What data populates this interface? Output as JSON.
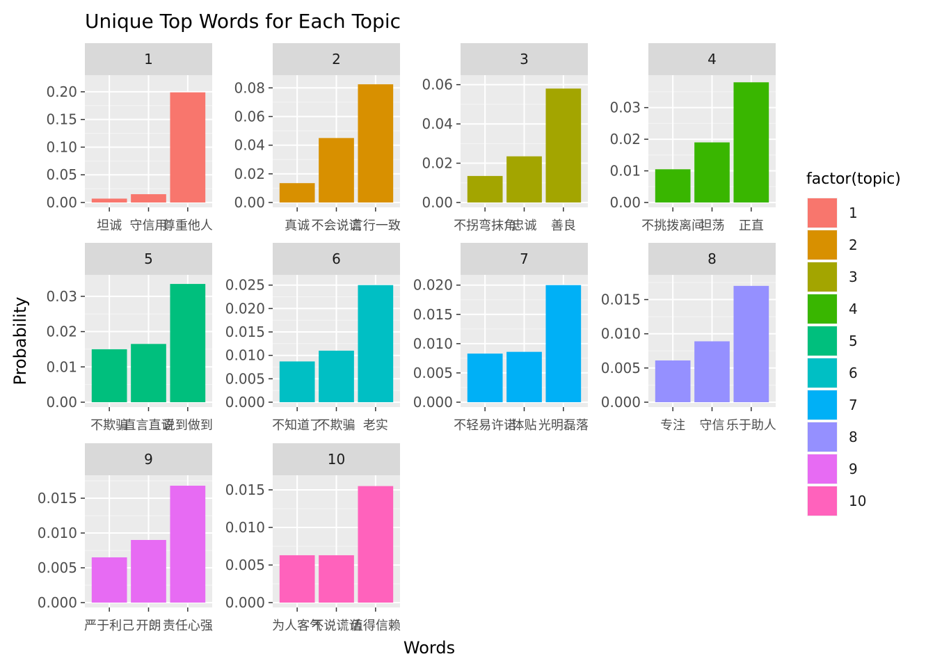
{
  "chart_data": {
    "type": "bar",
    "title": "Unique Top Words for Each Topic",
    "xlabel": "Words",
    "ylabel": "Probability",
    "grid": true,
    "legend": {
      "title": "factor(topic)",
      "position": "right",
      "entries": [
        "1",
        "2",
        "3",
        "4",
        "5",
        "6",
        "7",
        "8",
        "9",
        "10"
      ]
    },
    "facets": [
      {
        "label": "1",
        "color": "#F8766D",
        "ylim": [
          0,
          0.22
        ],
        "ticks": [
          0.0,
          0.05,
          0.1,
          0.15,
          0.2
        ],
        "tick_labels": [
          "0.00",
          "0.05",
          "0.10",
          "0.15",
          "0.20"
        ],
        "categories": [
          "坦诚",
          "守信用",
          "尊重他人"
        ],
        "values": [
          0.007,
          0.015,
          0.199
        ]
      },
      {
        "label": "2",
        "color": "#D89000",
        "ylim": [
          0,
          0.085
        ],
        "ticks": [
          0.0,
          0.02,
          0.04,
          0.06,
          0.08
        ],
        "tick_labels": [
          "0.00",
          "0.02",
          "0.04",
          "0.06",
          "0.08"
        ],
        "categories": [
          "真诚",
          "不会说谎",
          "言行一致"
        ],
        "values": [
          0.0135,
          0.045,
          0.0825
        ]
      },
      {
        "label": "3",
        "color": "#A3A500",
        "ylim": [
          0,
          0.062
        ],
        "ticks": [
          0.0,
          0.02,
          0.04,
          0.06
        ],
        "tick_labels": [
          "0.00",
          "0.02",
          "0.04",
          "0.06"
        ],
        "categories": [
          "不拐弯抹角",
          "忠诚",
          "善良"
        ],
        "values": [
          0.0135,
          0.0235,
          0.058
        ]
      },
      {
        "label": "4",
        "color": "#39B600",
        "ylim": [
          0,
          0.0385
        ],
        "ticks": [
          0.0,
          0.01,
          0.02,
          0.03
        ],
        "tick_labels": [
          "0.00",
          "0.01",
          "0.02",
          "0.03"
        ],
        "categories": [
          "不挑拨离间",
          "坦荡",
          "正直"
        ],
        "values": [
          0.0105,
          0.019,
          0.038
        ]
      },
      {
        "label": "5",
        "color": "#00BF7D",
        "ylim": [
          0,
          0.0345
        ],
        "ticks": [
          0.0,
          0.01,
          0.02,
          0.03
        ],
        "tick_labels": [
          "0.00",
          "0.01",
          "0.02",
          "0.03"
        ],
        "categories": [
          "不欺骗",
          "直言直语",
          "说到做到"
        ],
        "values": [
          0.015,
          0.0165,
          0.0335
        ]
      },
      {
        "label": "6",
        "color": "#00BFC4",
        "ylim": [
          0,
          0.026
        ],
        "ticks": [
          0.0,
          0.005,
          0.01,
          0.015,
          0.02,
          0.025
        ],
        "tick_labels": [
          "0.000",
          "0.005",
          "0.010",
          "0.015",
          "0.020",
          "0.025"
        ],
        "categories": [
          "不知道了",
          "不欺骗",
          "老实"
        ],
        "values": [
          0.0087,
          0.011,
          0.025
        ]
      },
      {
        "label": "7",
        "color": "#00B0F6",
        "ylim": [
          0,
          0.0208
        ],
        "ticks": [
          0.0,
          0.005,
          0.01,
          0.015,
          0.02
        ],
        "tick_labels": [
          "0.000",
          "0.005",
          "0.010",
          "0.015",
          "0.020"
        ],
        "categories": [
          "不轻易许诺",
          "体贴",
          "光明磊落"
        ],
        "values": [
          0.0083,
          0.0086,
          0.02
        ]
      },
      {
        "label": "8",
        "color": "#9590FF",
        "ylim": [
          0,
          0.0178
        ],
        "ticks": [
          0.0,
          0.005,
          0.01,
          0.015
        ],
        "tick_labels": [
          "0.000",
          "0.005",
          "0.010",
          "0.015"
        ],
        "categories": [
          "专注",
          "守信",
          "乐于助人"
        ],
        "values": [
          0.0061,
          0.0089,
          0.017
        ]
      },
      {
        "label": "9",
        "color": "#E76BF3",
        "ylim": [
          0,
          0.0175
        ],
        "ticks": [
          0.0,
          0.005,
          0.01,
          0.015
        ],
        "tick_labels": [
          "0.000",
          "0.005",
          "0.010",
          "0.015"
        ],
        "categories": [
          "严于利己",
          "开朗",
          "责任心强"
        ],
        "values": [
          0.0065,
          0.009,
          0.0168
        ]
      },
      {
        "label": "10",
        "color": "#FF62BC",
        "ylim": [
          0,
          0.0162
        ],
        "ticks": [
          0.0,
          0.005,
          0.01,
          0.015
        ],
        "tick_labels": [
          "0.000",
          "0.005",
          "0.010",
          "0.015"
        ],
        "categories": [
          "为人客气",
          "不说谎话",
          "值得信赖"
        ],
        "values": [
          0.0063,
          0.0063,
          0.0155
        ]
      }
    ]
  }
}
